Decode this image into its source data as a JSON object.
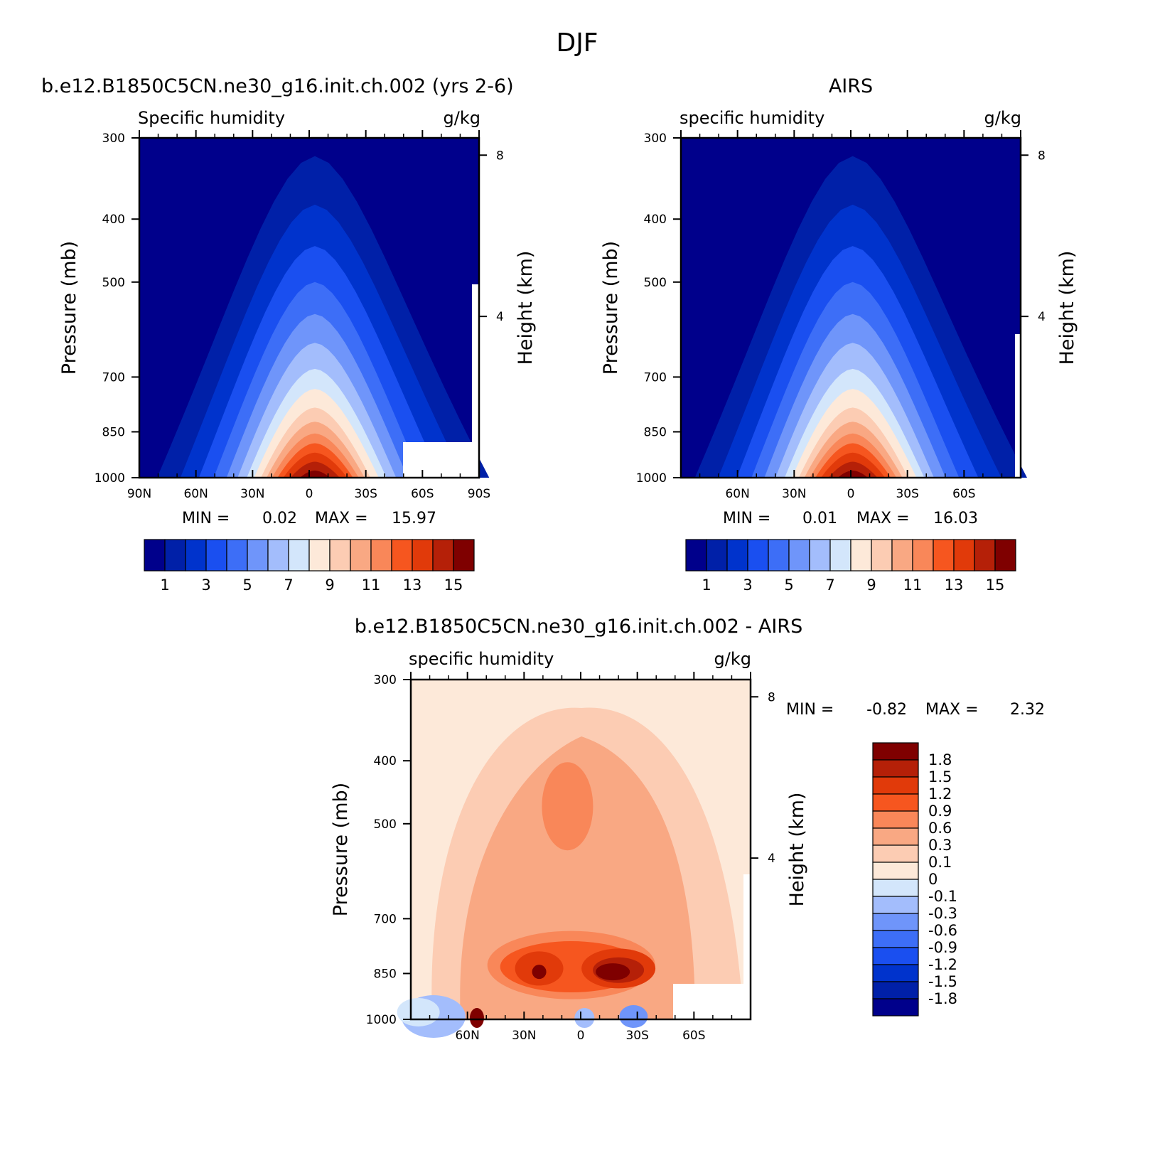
{
  "figure": {
    "title": "DJF"
  },
  "colors": {
    "model_levels": [
      "#00008b",
      "#0020a8",
      "#0033cc",
      "#1a4ff0",
      "#3d6ef7",
      "#6f95fa",
      "#a3bdfc",
      "#d3e6fb",
      "#fde9d9",
      "#fcccb3",
      "#f9a883",
      "#f98759",
      "#f6561f",
      "#e13a0a",
      "#b52008",
      "#7f0000"
    ],
    "diff_levels": [
      "#00008b",
      "#0020a8",
      "#0033cc",
      "#1a4ff0",
      "#3d6ef7",
      "#6f95fa",
      "#a3bdfc",
      "#d3e6fb",
      "#fde9d9",
      "#fcccb3",
      "#f9a883",
      "#f98759",
      "#f6561f",
      "#e13a0a",
      "#b52008",
      "#7f0000"
    ],
    "missing": "#ffffff"
  },
  "chart_data": [
    {
      "type": "contour",
      "id": "model",
      "title": "b.e12.B1850C5CN.ne30_g16.init.ch.002 (yrs 2-6)",
      "left_label": "Specific humidity",
      "right_label": "g/kg",
      "xlabel": "",
      "ylabel": "Pressure (mb)",
      "y2label": "Height (km)",
      "x_ticks": [
        "90N",
        "60N",
        "30N",
        "0",
        "30S",
        "60S",
        "90S"
      ],
      "y_ticks": [
        "300",
        "400",
        "500",
        "700",
        "850",
        "1000"
      ],
      "y2_ticks": [
        "8",
        "4"
      ],
      "xlim": [
        90,
        -90
      ],
      "ylim": [
        1000,
        300
      ],
      "stats": {
        "min_label": "MIN =",
        "min": "0.02",
        "max_label": "MAX =",
        "max": "15.97"
      },
      "colorbar": {
        "orientation": "horizontal",
        "labels": [
          "1",
          "3",
          "5",
          "7",
          "9",
          "11",
          "13",
          "15"
        ]
      },
      "description": "zonal-mean specific humidity vs latitude and pressure, peak ~15-16 g/kg near surface at equator",
      "peak": {
        "lat": -5,
        "p": 1000,
        "value": 15.97
      },
      "missing_region": {
        "lat_from": -50,
        "lat_to": -90,
        "p_from": 930,
        "p_to": 1000
      }
    },
    {
      "type": "contour",
      "id": "obs",
      "title": "AIRS",
      "left_label": "specific humidity",
      "right_label": "g/kg",
      "ylabel": "Pressure (mb)",
      "y2label": "Height (km)",
      "x_ticks": [
        "60N",
        "30N",
        "0",
        "30S",
        "60S"
      ],
      "y_ticks": [
        "300",
        "400",
        "500",
        "700",
        "850",
        "1000"
      ],
      "y2_ticks": [
        "8",
        "4"
      ],
      "xlim": [
        90,
        -90
      ],
      "ylim": [
        1000,
        300
      ],
      "stats": {
        "min_label": "MIN =",
        "min": "0.01",
        "max_label": "MAX =",
        "max": "16.03"
      },
      "colorbar": {
        "orientation": "horizontal",
        "labels": [
          "1",
          "3",
          "5",
          "7",
          "9",
          "11",
          "13",
          "15"
        ]
      },
      "peak": {
        "lat": 0,
        "p": 1000,
        "value": 16.03
      }
    },
    {
      "type": "contour",
      "id": "diff",
      "title": "b.e12.B1850C5CN.ne30_g16.init.ch.002 - AIRS",
      "left_label": "specific humidity",
      "right_label": "g/kg",
      "ylabel": "Pressure (mb)",
      "y2label": "Height (km)",
      "x_ticks": [
        "60N",
        "30N",
        "0",
        "30S",
        "60S"
      ],
      "y_ticks": [
        "300",
        "400",
        "500",
        "700",
        "850",
        "1000"
      ],
      "y2_ticks": [
        "8",
        "4"
      ],
      "xlim": [
        90,
        -90
      ],
      "ylim": [
        1000,
        300
      ],
      "stats": {
        "min_label": "MIN =",
        "min": "-0.82",
        "max_label": "MAX =",
        "max": "2.32"
      },
      "colorbar": {
        "orientation": "vertical",
        "labels": [
          "1.8",
          "1.5",
          "1.2",
          "0.9",
          "0.6",
          "0.3",
          "0.1",
          "0",
          "-0.1",
          "-0.3",
          "-0.6",
          "-0.9",
          "-1.2",
          "-1.5",
          "-1.8"
        ]
      },
      "missing_region": {
        "lat_from": -50,
        "lat_to": -90,
        "p_from": 930,
        "p_to": 1000
      }
    }
  ]
}
